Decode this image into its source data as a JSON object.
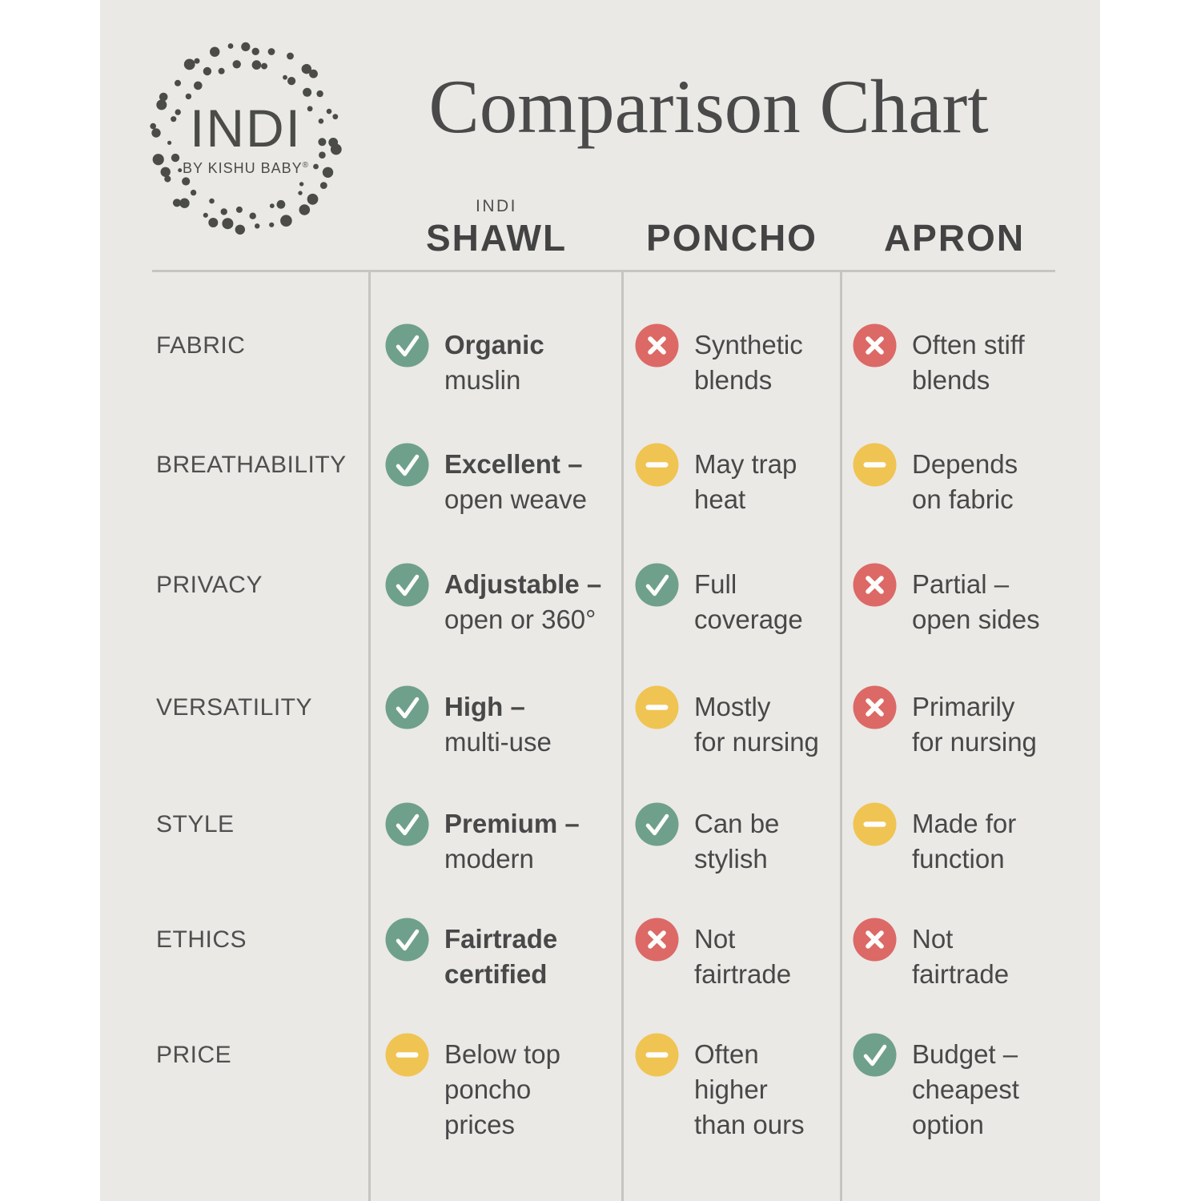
{
  "logo": {
    "brand": "INDI",
    "sub": "BY KISHU BABY",
    "reg": "®"
  },
  "chart_data": {
    "type": "table",
    "title": "Comparison Chart",
    "columns": [
      {
        "super": "INDI",
        "label": "SHAWL"
      },
      {
        "super": "",
        "label": "PONCHO"
      },
      {
        "super": "",
        "label": "APRON"
      }
    ],
    "rows": [
      {
        "label": "FABRIC",
        "cells": [
          {
            "icon": "check",
            "bold_lines": 1,
            "lines": [
              "Organic",
              "muslin"
            ]
          },
          {
            "icon": "cross",
            "bold_lines": 0,
            "lines": [
              "Synthetic",
              "blends"
            ]
          },
          {
            "icon": "cross",
            "bold_lines": 0,
            "lines": [
              "Often stiff",
              "blends"
            ]
          }
        ]
      },
      {
        "label": "BREATHABILITY",
        "cells": [
          {
            "icon": "check",
            "bold_lines": 1,
            "lines": [
              "Excellent –",
              "open weave"
            ]
          },
          {
            "icon": "dash",
            "bold_lines": 0,
            "lines": [
              "May trap",
              "heat"
            ]
          },
          {
            "icon": "dash",
            "bold_lines": 0,
            "lines": [
              "Depends",
              "on fabric"
            ]
          }
        ]
      },
      {
        "label": "PRIVACY",
        "cells": [
          {
            "icon": "check",
            "bold_lines": 1,
            "lines": [
              "Adjustable –",
              "open or 360°"
            ]
          },
          {
            "icon": "check",
            "bold_lines": 0,
            "lines": [
              "Full",
              "coverage"
            ]
          },
          {
            "icon": "cross",
            "bold_lines": 0,
            "lines": [
              "Partial –",
              "open sides"
            ]
          }
        ]
      },
      {
        "label": "VERSATILITY",
        "cells": [
          {
            "icon": "check",
            "bold_lines": 1,
            "lines": [
              "High –",
              "multi-use"
            ]
          },
          {
            "icon": "dash",
            "bold_lines": 0,
            "lines": [
              "Mostly",
              "for nursing"
            ]
          },
          {
            "icon": "cross",
            "bold_lines": 0,
            "lines": [
              "Primarily",
              "for nursing"
            ]
          }
        ]
      },
      {
        "label": "STYLE",
        "cells": [
          {
            "icon": "check",
            "bold_lines": 1,
            "lines": [
              "Premium –",
              "modern"
            ]
          },
          {
            "icon": "check",
            "bold_lines": 0,
            "lines": [
              "Can be",
              "stylish"
            ]
          },
          {
            "icon": "dash",
            "bold_lines": 0,
            "lines": [
              "Made for",
              "function"
            ]
          }
        ]
      },
      {
        "label": "ETHICS",
        "cells": [
          {
            "icon": "check",
            "bold_lines": 2,
            "lines": [
              "Fairtrade",
              "certified"
            ]
          },
          {
            "icon": "cross",
            "bold_lines": 0,
            "lines": [
              "Not",
              "fairtrade"
            ]
          },
          {
            "icon": "cross",
            "bold_lines": 0,
            "lines": [
              "Not",
              "fairtrade"
            ]
          }
        ]
      },
      {
        "label": "PRICE",
        "cells": [
          {
            "icon": "dash",
            "bold_lines": 0,
            "lines": [
              "Below top",
              "poncho",
              "prices"
            ]
          },
          {
            "icon": "dash",
            "bold_lines": 0,
            "lines": [
              "Often",
              "higher",
              "than ours"
            ]
          },
          {
            "icon": "check",
            "bold_lines": 0,
            "lines": [
              "Budget –",
              "cheapest",
              "option"
            ]
          }
        ]
      }
    ]
  },
  "icon_legend": {
    "check": "green circle with white check mark",
    "cross": "red circle with white x mark",
    "dash": "yellow circle with white dash"
  },
  "colors": {
    "page_bg": "#FFFFFF",
    "panel_bg": "#EAE9E6",
    "check": "#6FA08C",
    "cross": "#DC6966",
    "dash": "#F0C452",
    "glyph": "#FDFDFB",
    "text": "#484848",
    "line": "#C7C5C2"
  }
}
